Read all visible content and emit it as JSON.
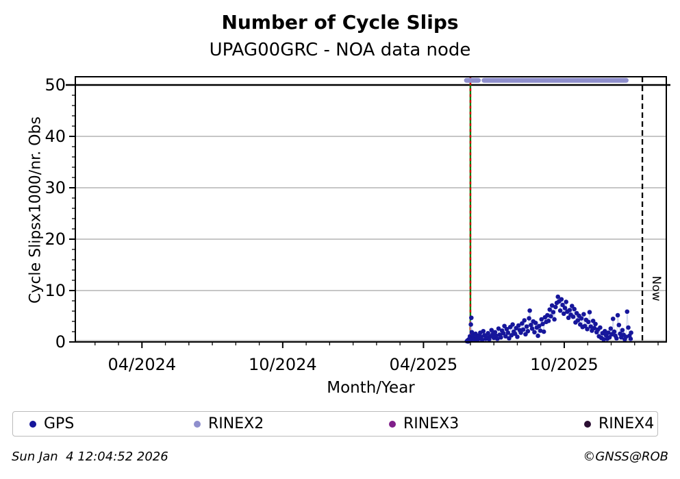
{
  "title": "Number of Cycle Slips",
  "subtitle": "UPAG00GRC - NOA data node",
  "footer": {
    "timestamp": "Sun Jan  4 12:04:52 2026",
    "credit": "©GNSS@ROB"
  },
  "legend": {
    "items": [
      {
        "label": "GPS",
        "color": "#16169b"
      },
      {
        "label": "RINEX2",
        "color": "#8f8fcd"
      },
      {
        "label": "RINEX3",
        "color": "#801f8a"
      },
      {
        "label": "RINEX4",
        "color": "#2b0f33"
      }
    ]
  },
  "chart_data": {
    "type": "scatter",
    "title": "Number of Cycle Slips",
    "subtitle": "UPAG00GRC - NOA data node",
    "xlabel": "Month/Year",
    "ylabel": "Cycle Slipsx1000/nr. Obs",
    "x_unit": "months since 2024-01-01",
    "xlim": [
      0.16,
      25.35
    ],
    "ylim": [
      0,
      51.6
    ],
    "x_major_ticks": [
      {
        "m": 3,
        "label": "04/2024"
      },
      {
        "m": 9,
        "label": "10/2024"
      },
      {
        "m": 15,
        "label": "04/2025"
      },
      {
        "m": 21,
        "label": "10/2025"
      }
    ],
    "x_minor_tick_months": [
      1,
      2,
      4,
      5,
      6,
      7,
      8,
      10,
      11,
      12,
      13,
      14,
      16,
      17,
      18,
      19,
      20,
      22,
      23,
      24,
      25
    ],
    "y_major_ticks": [
      0,
      10,
      20,
      30,
      40,
      50
    ],
    "y_minor_step": 2,
    "gridlines_y": [
      0,
      10,
      20,
      30,
      40
    ],
    "grid_color": "#b3b3b3",
    "threshold_line_y": 50,
    "annotations": {
      "start_line_m": 17.0,
      "start_line_color": "#008000",
      "start_line_dash_color": "#d10000",
      "now_line_m": 24.33,
      "now_label": "Now"
    },
    "series": [
      {
        "name": "GPS",
        "color": "#16169b",
        "marker_r": 3.3,
        "line_color": "#ccd5ee",
        "points": [
          [
            16.85,
            0.15
          ],
          [
            16.88,
            0.3
          ],
          [
            16.9,
            0.1
          ],
          [
            16.93,
            0.5
          ],
          [
            16.96,
            0.2
          ],
          [
            16.98,
            1.1
          ],
          [
            17.0,
            0.3
          ],
          [
            17.02,
            3.4
          ],
          [
            17.04,
            4.7
          ],
          [
            17.06,
            1.9
          ],
          [
            17.08,
            0.6
          ],
          [
            17.1,
            1.4
          ],
          [
            17.14,
            0.8
          ],
          [
            17.18,
            0.4
          ],
          [
            17.22,
            1.6
          ],
          [
            17.26,
            0.9
          ],
          [
            17.3,
            0.3
          ],
          [
            17.34,
            1.2
          ],
          [
            17.38,
            0.7
          ],
          [
            17.42,
            1.8
          ],
          [
            17.46,
            1.0
          ],
          [
            17.5,
            0.4
          ],
          [
            17.55,
            2.1
          ],
          [
            17.6,
            1.3
          ],
          [
            17.65,
            0.6
          ],
          [
            17.7,
            0.9
          ],
          [
            17.75,
            1.7
          ],
          [
            17.8,
            0.5
          ],
          [
            17.85,
            1.1
          ],
          [
            17.9,
            2.3
          ],
          [
            17.95,
            1.5
          ],
          [
            18.0,
            0.8
          ],
          [
            18.05,
            1.9
          ],
          [
            18.1,
            1.2
          ],
          [
            18.15,
            0.6
          ],
          [
            18.2,
            2.6
          ],
          [
            18.25,
            1.4
          ],
          [
            18.3,
            0.9
          ],
          [
            18.35,
            2.2
          ],
          [
            18.4,
            1.7
          ],
          [
            18.45,
            3.1
          ],
          [
            18.5,
            1.1
          ],
          [
            18.55,
            2.5
          ],
          [
            18.6,
            1.8
          ],
          [
            18.65,
            0.7
          ],
          [
            18.7,
            2.9
          ],
          [
            18.75,
            1.3
          ],
          [
            18.8,
            3.4
          ],
          [
            18.85,
            2.0
          ],
          [
            18.9,
            1.6
          ],
          [
            18.95,
            2.7
          ],
          [
            19.0,
            1.0
          ],
          [
            19.05,
            3.2
          ],
          [
            19.1,
            2.3
          ],
          [
            19.15,
            1.8
          ],
          [
            19.2,
            3.6
          ],
          [
            19.25,
            2.4
          ],
          [
            19.3,
            4.2
          ],
          [
            19.35,
            1.5
          ],
          [
            19.4,
            3.0
          ],
          [
            19.45,
            2.1
          ],
          [
            19.5,
            4.6
          ],
          [
            19.53,
            6.1
          ],
          [
            19.58,
            3.3
          ],
          [
            19.63,
            2.6
          ],
          [
            19.68,
            4.0
          ],
          [
            19.73,
            1.9
          ],
          [
            19.78,
            3.7
          ],
          [
            19.83,
            2.8
          ],
          [
            19.88,
            1.2
          ],
          [
            19.93,
            3.1
          ],
          [
            19.98,
            2.2
          ],
          [
            20.03,
            4.4
          ],
          [
            20.08,
            3.5
          ],
          [
            20.13,
            2.0
          ],
          [
            20.18,
            4.8
          ],
          [
            20.23,
            3.9
          ],
          [
            20.28,
            5.2
          ],
          [
            20.33,
            4.1
          ],
          [
            20.38,
            6.3
          ],
          [
            20.43,
            5.0
          ],
          [
            20.48,
            7.1
          ],
          [
            20.53,
            5.8
          ],
          [
            20.58,
            4.4
          ],
          [
            20.63,
            6.8
          ],
          [
            20.68,
            7.6
          ],
          [
            20.73,
            8.8
          ],
          [
            20.78,
            7.9
          ],
          [
            20.83,
            6.1
          ],
          [
            20.88,
            8.3
          ],
          [
            20.93,
            7.2
          ],
          [
            20.98,
            5.5
          ],
          [
            21.03,
            6.6
          ],
          [
            21.08,
            7.8
          ],
          [
            21.13,
            5.9
          ],
          [
            21.18,
            4.7
          ],
          [
            21.23,
            6.2
          ],
          [
            21.28,
            5.3
          ],
          [
            21.33,
            7.0
          ],
          [
            21.38,
            4.9
          ],
          [
            21.43,
            6.4
          ],
          [
            21.48,
            3.8
          ],
          [
            21.53,
            5.6
          ],
          [
            21.58,
            4.2
          ],
          [
            21.63,
            5.1
          ],
          [
            21.68,
            3.4
          ],
          [
            21.73,
            4.6
          ],
          [
            21.78,
            2.9
          ],
          [
            21.83,
            5.4
          ],
          [
            21.88,
            3.1
          ],
          [
            21.93,
            4.3
          ],
          [
            21.98,
            2.5
          ],
          [
            22.03,
            3.9
          ],
          [
            22.08,
            5.8
          ],
          [
            22.13,
            3.0
          ],
          [
            22.18,
            2.2
          ],
          [
            22.23,
            4.1
          ],
          [
            22.28,
            2.7
          ],
          [
            22.33,
            3.5
          ],
          [
            22.38,
            1.9
          ],
          [
            22.43,
            2.4
          ],
          [
            22.48,
            1.1
          ],
          [
            22.53,
            2.8
          ],
          [
            22.58,
            0.8
          ],
          [
            22.63,
            1.7
          ],
          [
            22.68,
            0.5
          ],
          [
            22.73,
            2.1
          ],
          [
            22.78,
            1.3
          ],
          [
            22.83,
            0.6
          ],
          [
            22.88,
            1.8
          ],
          [
            22.93,
            0.9
          ],
          [
            22.98,
            2.6
          ],
          [
            23.03,
            1.5
          ],
          [
            23.08,
            4.5
          ],
          [
            23.13,
            2.0
          ],
          [
            23.18,
            1.2
          ],
          [
            23.23,
            0.7
          ],
          [
            23.28,
            5.2
          ],
          [
            23.33,
            3.3
          ],
          [
            23.38,
            1.6
          ],
          [
            23.43,
            0.9
          ],
          [
            23.48,
            2.3
          ],
          [
            23.53,
            1.4
          ],
          [
            23.58,
            0.5
          ],
          [
            23.63,
            1.0
          ],
          [
            23.68,
            5.9
          ],
          [
            23.73,
            2.8
          ],
          [
            23.78,
            1.2
          ],
          [
            23.83,
            0.6
          ],
          [
            23.85,
            1.8
          ]
        ]
      },
      {
        "name": "RINEX2",
        "color": "#8f8fcd",
        "marker_r": 3.5,
        "value": 50.9,
        "segments": [
          [
            16.83,
            17.35
          ],
          [
            17.58,
            23.66
          ]
        ],
        "point_step_m": 0.03
      },
      {
        "name": "RINEX3",
        "color": "#801f8a",
        "points": []
      },
      {
        "name": "RINEX4",
        "color": "#2b0f33",
        "points": []
      }
    ],
    "legend_position": "bottom",
    "grid": "horizontal-only"
  }
}
